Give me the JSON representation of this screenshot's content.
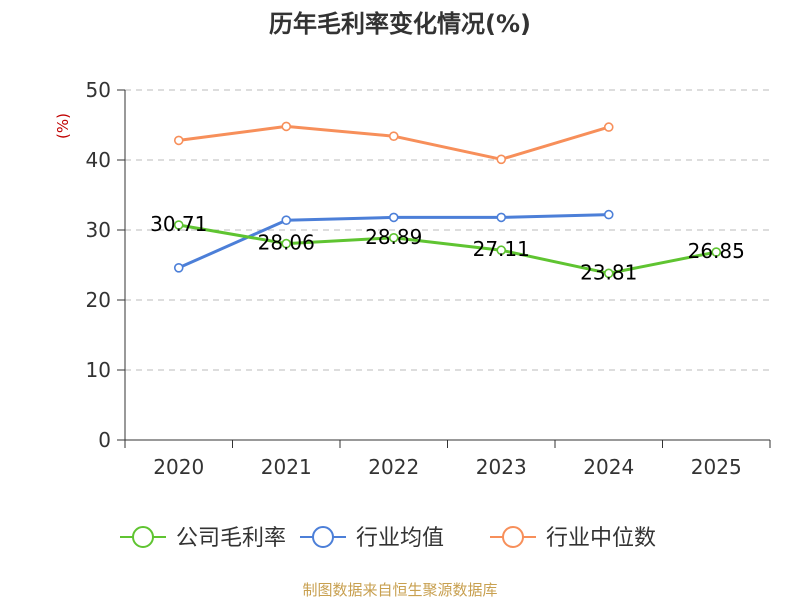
{
  "chart_data": {
    "type": "line",
    "title": "历年毛利率变化情况(%)",
    "ylabel": "(%)",
    "xlabel": "",
    "categories": [
      "2020",
      "2021",
      "2022",
      "2023",
      "2024",
      "2025"
    ],
    "ylim": [
      0,
      50
    ],
    "yticks": [
      0,
      10,
      20,
      30,
      40,
      50
    ],
    "grid": "horizontal-dashed",
    "legend_position": "bottom",
    "series": [
      {
        "name": "公司毛利率",
        "color": "#5fc431",
        "values": [
          30.71,
          28.06,
          28.89,
          27.11,
          23.81,
          26.85
        ],
        "labels": [
          "30.71",
          "28.06",
          "28.89",
          "27.11",
          "23.81",
          "26.85"
        ]
      },
      {
        "name": "行业均值",
        "color": "#4c7fd8",
        "values": [
          24.6,
          31.4,
          31.8,
          31.8,
          32.2,
          null
        ]
      },
      {
        "name": "行业中位数",
        "color": "#f78f5a",
        "values": [
          42.8,
          44.8,
          43.4,
          40.1,
          44.7,
          null
        ]
      }
    ]
  },
  "source": "制图数据来自恒生聚源数据库"
}
